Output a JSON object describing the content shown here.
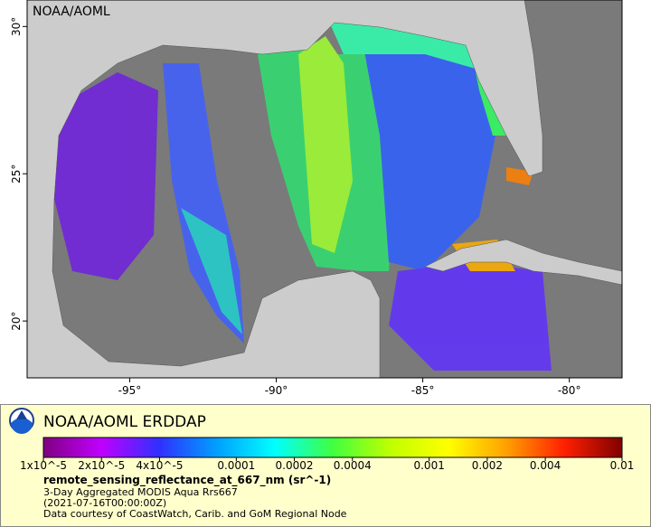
{
  "map": {
    "label": "NOAA/AOML",
    "lon_range": [
      -98.5,
      -78.2
    ],
    "lat_range": [
      18.07,
      30.9
    ],
    "lon_ticks": [
      {
        "value": -95,
        "label": "-95°"
      },
      {
        "value": -90,
        "label": "-90°"
      },
      {
        "value": -85,
        "label": "-85°"
      },
      {
        "value": -80,
        "label": "-80°"
      }
    ],
    "lat_ticks": [
      {
        "value": 20,
        "label": "20°"
      },
      {
        "value": 25,
        "label": "25°"
      },
      {
        "value": 30,
        "label": "30°"
      }
    ]
  },
  "legend": {
    "title": "NOAA/AOML ERDDAP",
    "colorbar": {
      "range": [
        1e-05,
        0.01
      ],
      "scale": "log",
      "colors": [
        "#800080",
        "#c000ff",
        "#3030ff",
        "#00a0ff",
        "#00ffff",
        "#40ff40",
        "#c0ff00",
        "#ffff00",
        "#ffa000",
        "#ff2000",
        "#800000"
      ],
      "ticks": [
        {
          "value": 1e-05,
          "label": "1x10^-5"
        },
        {
          "value": 2e-05,
          "label": "2x10^-5"
        },
        {
          "value": 4e-05,
          "label": "4x10^-5"
        },
        0.0001,
        0.0002,
        0.0004,
        0.001,
        0.002,
        0.004,
        0.01
      ]
    },
    "variable": "remote_sensing_reflectance_at_667_nm (sr^-1)",
    "lines": [
      "3-Day Aggregated MODIS Aqua Rrs667",
      "(2021-07-16T00:00:00Z)",
      "Data courtesy of CoastWatch, Carib. and GoM Regional Node"
    ]
  }
}
